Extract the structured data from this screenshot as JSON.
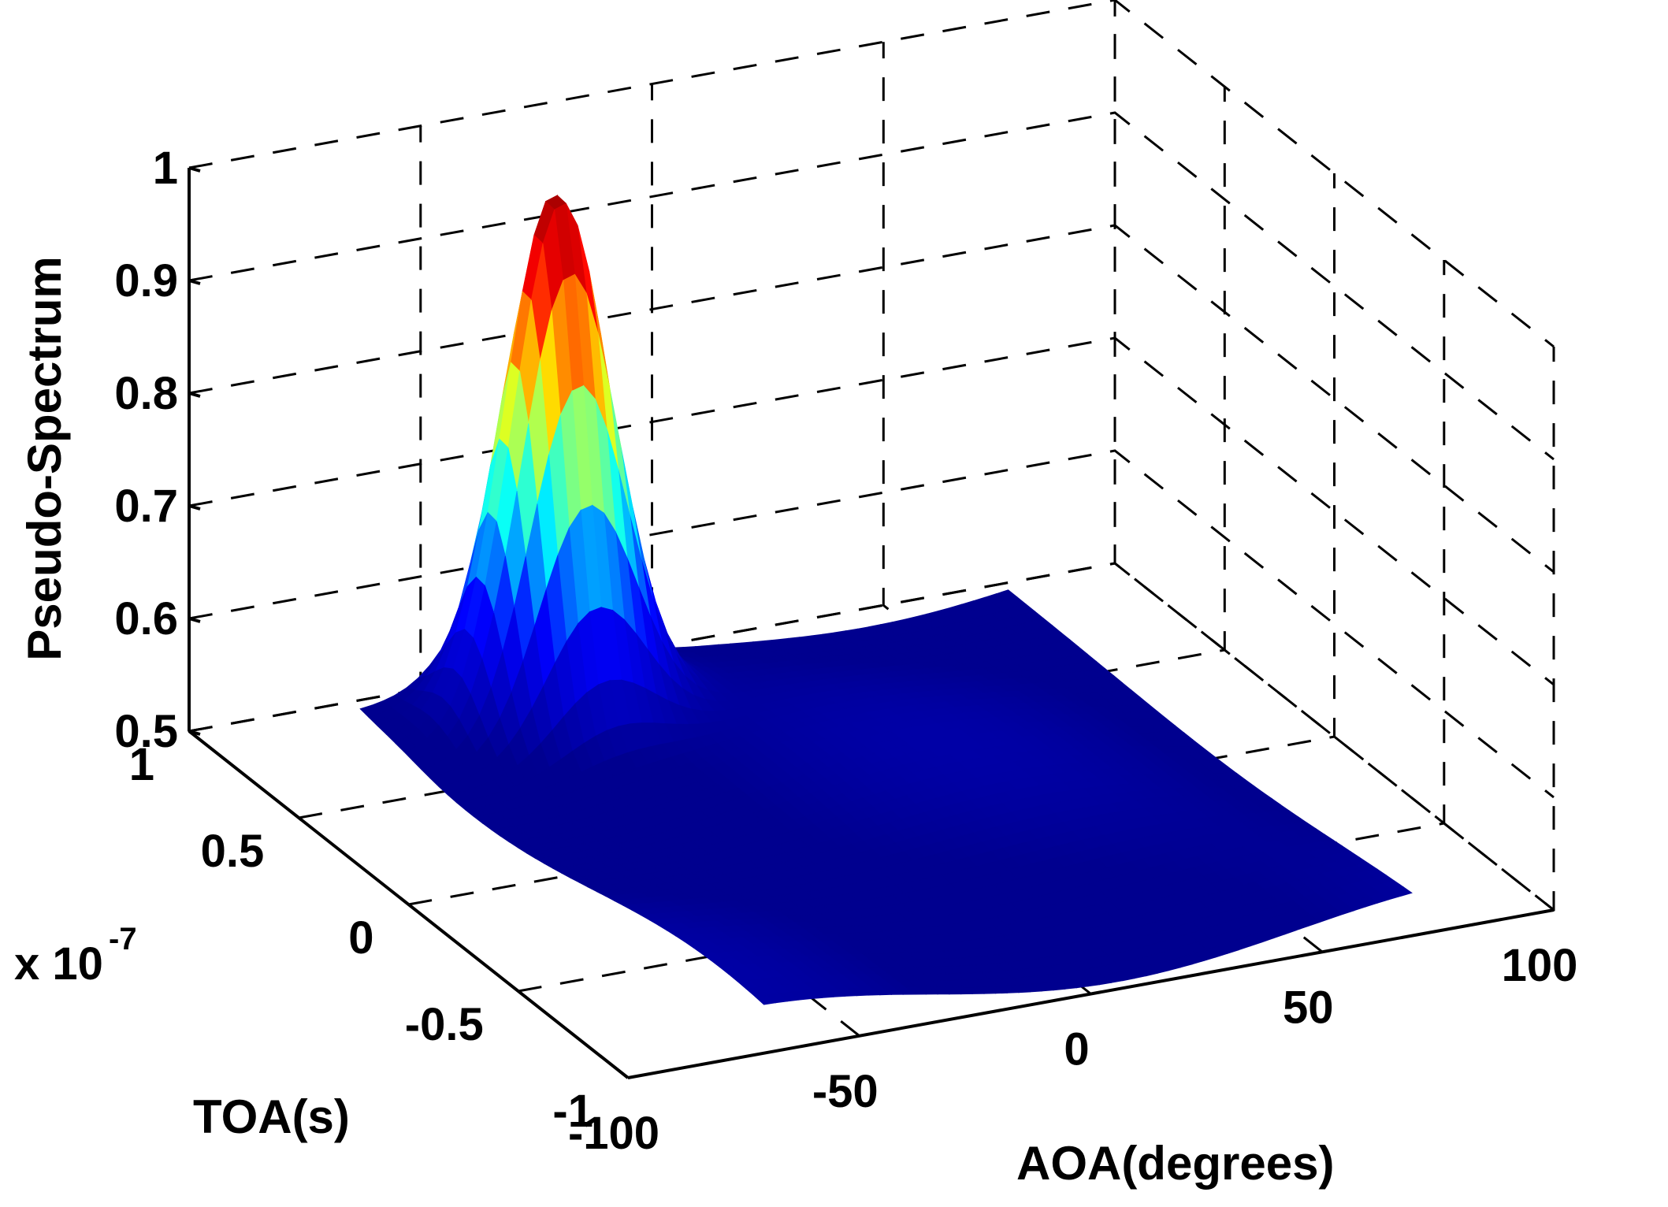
{
  "chart_data": {
    "type": "surface3d",
    "title": "",
    "xlabel": "AOA(degrees)",
    "ylabel": "TOA(s)",
    "zlabel": "Pseudo-Spectrum",
    "y_exponent_label": "x 10",
    "y_exponent_power": "-7",
    "xlim": [
      -100,
      100
    ],
    "ylim": [
      -1,
      1
    ],
    "zlim": [
      0.5,
      1
    ],
    "x_ticks": [
      "-100",
      "-50",
      "0",
      "50",
      "100"
    ],
    "x_tick_values": [
      -100,
      -50,
      0,
      50,
      100
    ],
    "y_ticks": [
      "-1",
      "-0.5",
      "0",
      "0.5",
      "1"
    ],
    "y_tick_values": [
      -1,
      -0.5,
      0,
      0.5,
      1
    ],
    "z_ticks": [
      "0.5",
      "0.6",
      "0.7",
      "0.8",
      "0.9",
      "1"
    ],
    "z_tick_values": [
      0.5,
      0.6,
      0.7,
      0.8,
      0.9,
      1
    ],
    "grid": true,
    "colormap": "jet",
    "colormap_colors": [
      "#00008f",
      "#0000ff",
      "#00ffff",
      "#ffff00",
      "#ff0000",
      "#800000"
    ],
    "peak": {
      "aoa": -30,
      "toa": 0.8,
      "value": 0.96
    },
    "floor_value": 0.5
  }
}
